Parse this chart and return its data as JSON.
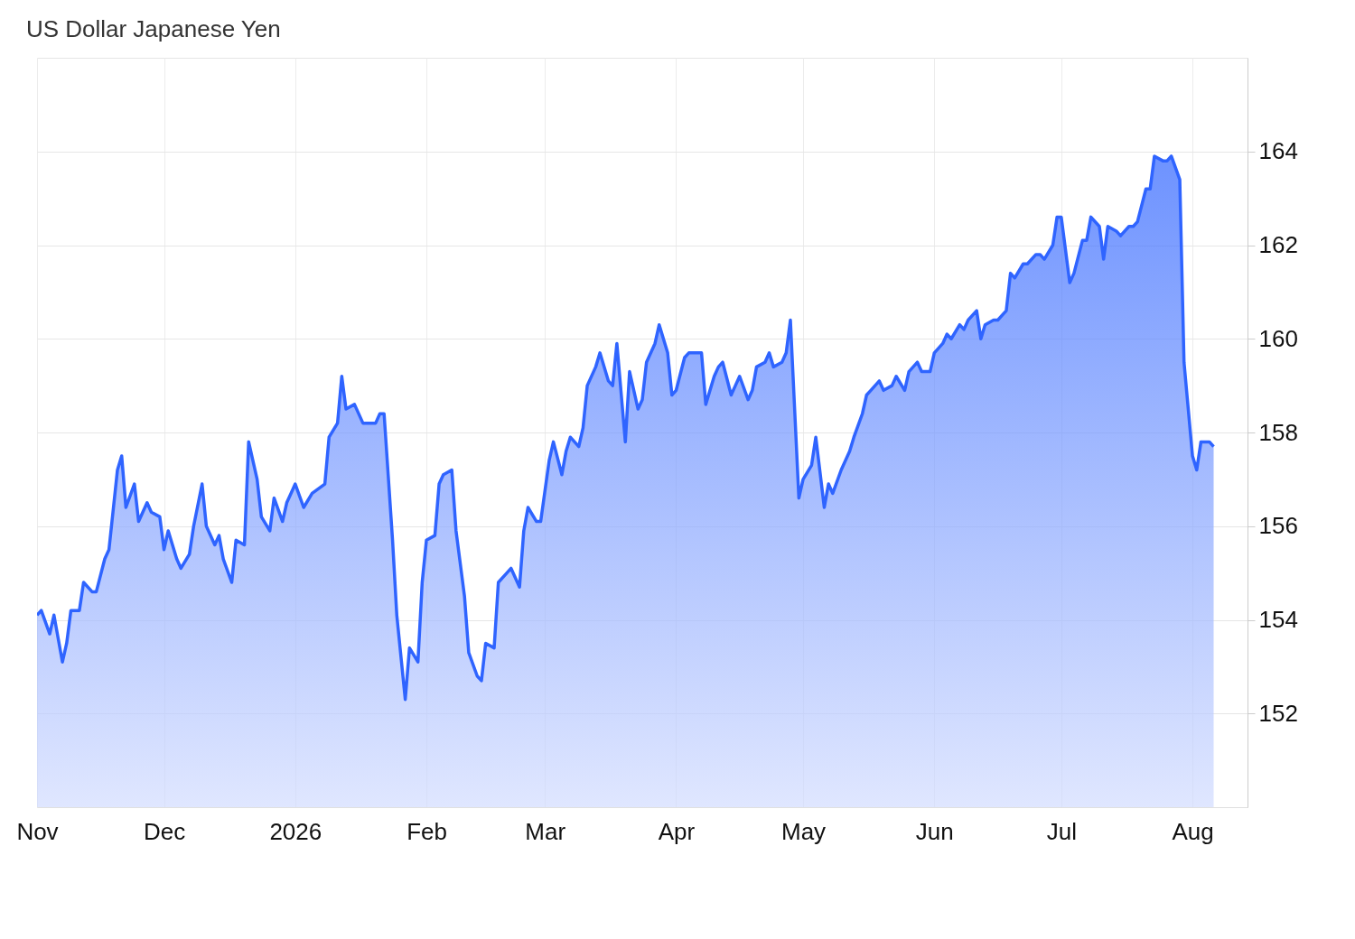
{
  "chart_data": {
    "type": "area",
    "title": "US Dollar Japanese Yen",
    "x": [
      "2025-11-01",
      "2025-11-02",
      "2025-11-04",
      "2025-11-05",
      "2025-11-07",
      "2025-11-08",
      "2025-11-09",
      "2025-11-11",
      "2025-11-12",
      "2025-11-14",
      "2025-11-15",
      "2025-11-17",
      "2025-11-18",
      "2025-11-20",
      "2025-11-21",
      "2025-11-22",
      "2025-11-24",
      "2025-11-25",
      "2025-11-27",
      "2025-11-28",
      "2025-11-30",
      "2025-12-01",
      "2025-12-02",
      "2025-12-04",
      "2025-12-05",
      "2025-12-07",
      "2025-12-08",
      "2025-12-10",
      "2025-12-11",
      "2025-12-13",
      "2025-12-14",
      "2025-12-15",
      "2025-12-17",
      "2025-12-18",
      "2025-12-20",
      "2025-12-21",
      "2025-12-23",
      "2025-12-24",
      "2025-12-26",
      "2025-12-27",
      "2025-12-29",
      "2025-12-30",
      "2025-12-31",
      "2026-01-01",
      "2026-01-03",
      "2026-01-05",
      "2026-01-08",
      "2026-01-09",
      "2026-01-11",
      "2026-01-12",
      "2026-01-13",
      "2026-01-15",
      "2026-01-17",
      "2026-01-18",
      "2026-01-20",
      "2026-01-21",
      "2026-01-22",
      "2026-01-24",
      "2026-01-25",
      "2026-01-27",
      "2026-01-28",
      "2026-01-30",
      "2026-01-31",
      "2026-02-01",
      "2026-02-03",
      "2026-02-04",
      "2026-02-05",
      "2026-02-07",
      "2026-02-08",
      "2026-02-10",
      "2026-02-11",
      "2026-02-13",
      "2026-02-14",
      "2026-02-15",
      "2026-02-17",
      "2026-02-18",
      "2026-02-20",
      "2026-02-21",
      "2026-02-23",
      "2026-02-24",
      "2026-02-25",
      "2026-02-27",
      "2026-02-28",
      "2026-03-02",
      "2026-03-03",
      "2026-03-05",
      "2026-03-06",
      "2026-03-07",
      "2026-03-09",
      "2026-03-10",
      "2026-03-11",
      "2026-03-13",
      "2026-03-14",
      "2026-03-16",
      "2026-03-17",
      "2026-03-18",
      "2026-03-20",
      "2026-03-21",
      "2026-03-23",
      "2026-03-24",
      "2026-03-25",
      "2026-03-27",
      "2026-03-28",
      "2026-03-30",
      "2026-03-31",
      "2026-04-01",
      "2026-04-03",
      "2026-04-04",
      "2026-04-06",
      "2026-04-07",
      "2026-04-08",
      "2026-04-10",
      "2026-04-11",
      "2026-04-12",
      "2026-04-14",
      "2026-04-15",
      "2026-04-16",
      "2026-04-18",
      "2026-04-19",
      "2026-04-20",
      "2026-04-22",
      "2026-04-23",
      "2026-04-24",
      "2026-04-26",
      "2026-04-27",
      "2026-04-28",
      "2026-04-30",
      "2026-05-01",
      "2026-05-03",
      "2026-05-04",
      "2026-05-06",
      "2026-05-07",
      "2026-05-08",
      "2026-05-10",
      "2026-05-12",
      "2026-05-13",
      "2026-05-15",
      "2026-05-16",
      "2026-05-17",
      "2026-05-19",
      "2026-05-20",
      "2026-05-22",
      "2026-05-23",
      "2026-05-25",
      "2026-05-26",
      "2026-05-28",
      "2026-05-29",
      "2026-05-31",
      "2026-06-01",
      "2026-06-03",
      "2026-06-04",
      "2026-06-05",
      "2026-06-07",
      "2026-06-08",
      "2026-06-09",
      "2026-06-11",
      "2026-06-12",
      "2026-06-13",
      "2026-06-15",
      "2026-06-16",
      "2026-06-18",
      "2026-06-19",
      "2026-06-20",
      "2026-06-22",
      "2026-06-23",
      "2026-06-25",
      "2026-06-26",
      "2026-06-27",
      "2026-06-29",
      "2026-06-30",
      "2026-07-01",
      "2026-07-03",
      "2026-07-04",
      "2026-07-06",
      "2026-07-07",
      "2026-07-08",
      "2026-07-10",
      "2026-07-11",
      "2026-07-12",
      "2026-07-14",
      "2026-07-15",
      "2026-07-17",
      "2026-07-18",
      "2026-07-19",
      "2026-07-21",
      "2026-07-22",
      "2026-07-23",
      "2026-07-25",
      "2026-07-26",
      "2026-07-27",
      "2026-07-29",
      "2026-07-30",
      "2026-08-01",
      "2026-08-02",
      "2026-08-03",
      "2026-08-05",
      "2026-08-06"
    ],
    "series": [
      {
        "color": "#2f64ff",
        "values": [
          154.1,
          154.2,
          153.7,
          154.1,
          153.1,
          153.5,
          154.2,
          154.2,
          154.8,
          154.6,
          154.6,
          155.3,
          155.5,
          157.2,
          157.5,
          156.4,
          156.9,
          156.1,
          156.5,
          156.3,
          156.2,
          155.5,
          155.9,
          155.3,
          155.1,
          155.4,
          156.0,
          156.9,
          156.0,
          155.6,
          155.8,
          155.3,
          154.8,
          155.7,
          155.6,
          157.8,
          157.0,
          156.2,
          155.9,
          156.6,
          156.1,
          156.5,
          156.7,
          156.9,
          156.4,
          156.7,
          156.9,
          157.9,
          158.2,
          159.2,
          158.5,
          158.6,
          158.2,
          158.2,
          158.2,
          158.4,
          158.4,
          155.7,
          154.1,
          152.3,
          153.4,
          153.1,
          154.8,
          155.7,
          155.8,
          156.9,
          157.1,
          157.2,
          155.9,
          154.5,
          153.3,
          152.8,
          152.7,
          153.5,
          153.4,
          154.8,
          155.0,
          155.1,
          154.7,
          155.9,
          156.4,
          156.1,
          156.1,
          157.4,
          157.8,
          157.1,
          157.6,
          157.9,
          157.7,
          158.1,
          159.0,
          159.4,
          159.7,
          159.1,
          159.0,
          159.9,
          157.8,
          159.3,
          158.5,
          158.7,
          159.5,
          159.9,
          160.3,
          159.7,
          158.8,
          158.9,
          159.6,
          159.7,
          159.7,
          159.7,
          158.6,
          159.2,
          159.4,
          159.5,
          158.8,
          159.0,
          159.2,
          158.7,
          158.9,
          159.4,
          159.5,
          159.7,
          159.4,
          159.5,
          159.7,
          160.4,
          156.6,
          157.0,
          157.3,
          157.9,
          156.4,
          156.9,
          156.7,
          157.2,
          157.6,
          157.9,
          158.4,
          158.8,
          158.9,
          159.1,
          158.9,
          159.0,
          159.2,
          158.9,
          159.3,
          159.5,
          159.3,
          159.3,
          159.7,
          159.9,
          160.1,
          160.0,
          160.3,
          160.2,
          160.4,
          160.6,
          160.0,
          160.3,
          160.4,
          160.4,
          160.6,
          161.4,
          161.3,
          161.6,
          161.6,
          161.8,
          161.8,
          161.7,
          162.0,
          162.6,
          162.6,
          161.2,
          161.4,
          162.1,
          162.1,
          162.6,
          162.4,
          161.7,
          162.4,
          162.3,
          162.2,
          162.4,
          162.4,
          162.5,
          163.2,
          163.2,
          163.9,
          163.8,
          163.8,
          163.9,
          163.4,
          159.5,
          157.5,
          157.2,
          157.8,
          157.8,
          157.7
        ]
      }
    ],
    "xlim": [
      "2025-11-01",
      "2026-08-14"
    ],
    "xticks": [
      {
        "value": "2025-11-01",
        "label": "Nov"
      },
      {
        "value": "2025-12-01",
        "label": "Dec"
      },
      {
        "value": "2026-01-01",
        "label": "2026"
      },
      {
        "value": "2026-02-01",
        "label": "Feb"
      },
      {
        "value": "2026-03-01",
        "label": "Mar"
      },
      {
        "value": "2026-04-01",
        "label": "Apr"
      },
      {
        "value": "2026-05-01",
        "label": "May"
      },
      {
        "value": "2026-06-01",
        "label": "Jun"
      },
      {
        "value": "2026-07-01",
        "label": "Jul"
      },
      {
        "value": "2026-08-01",
        "label": "Aug"
      }
    ],
    "ylim": [
      150,
      166
    ],
    "yticks": [
      152,
      154,
      156,
      158,
      160,
      162,
      164
    ],
    "grid": true
  }
}
